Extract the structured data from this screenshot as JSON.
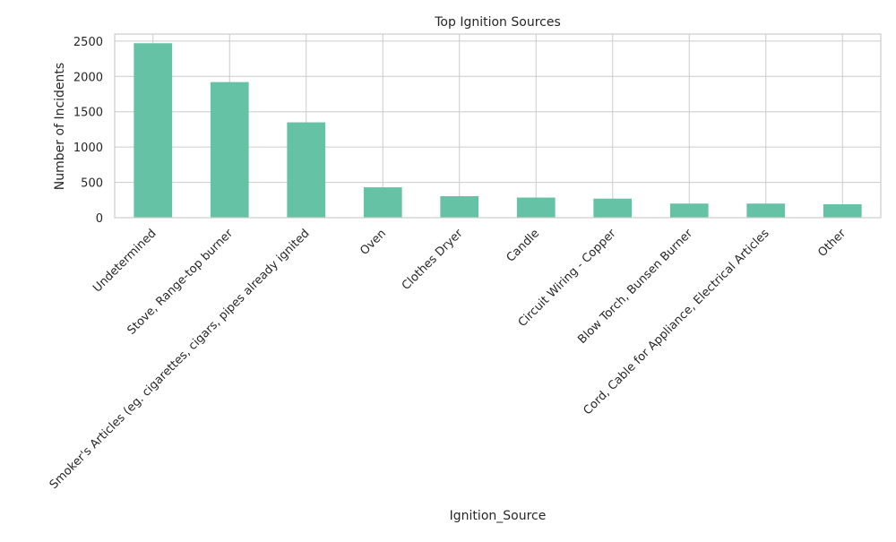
{
  "chart_data": {
    "type": "bar",
    "title": "Top Ignition Sources",
    "xlabel": "Ignition_Source",
    "ylabel": "Number of Incidents",
    "categories": [
      "Undetermined",
      "Stove, Range-top burner",
      "Smoker's Articles (eg. cigarettes, cigars, pipes already ignited",
      "Oven",
      "Clothes Dryer",
      "Candle",
      "Circuit Wiring - Copper",
      "Blow Torch, Bunsen Burner",
      "Cord, Cable for Appliance, Electrical Articles",
      "Other"
    ],
    "values": [
      2470,
      1920,
      1350,
      430,
      305,
      285,
      270,
      200,
      200,
      190
    ],
    "ylim": [
      0,
      2600
    ],
    "yticks": [
      0,
      500,
      1000,
      1500,
      2000,
      2500
    ],
    "grid": true,
    "colors": {
      "bar": "#66c2a5",
      "grid": "#cccccc",
      "text": "#262626"
    }
  }
}
